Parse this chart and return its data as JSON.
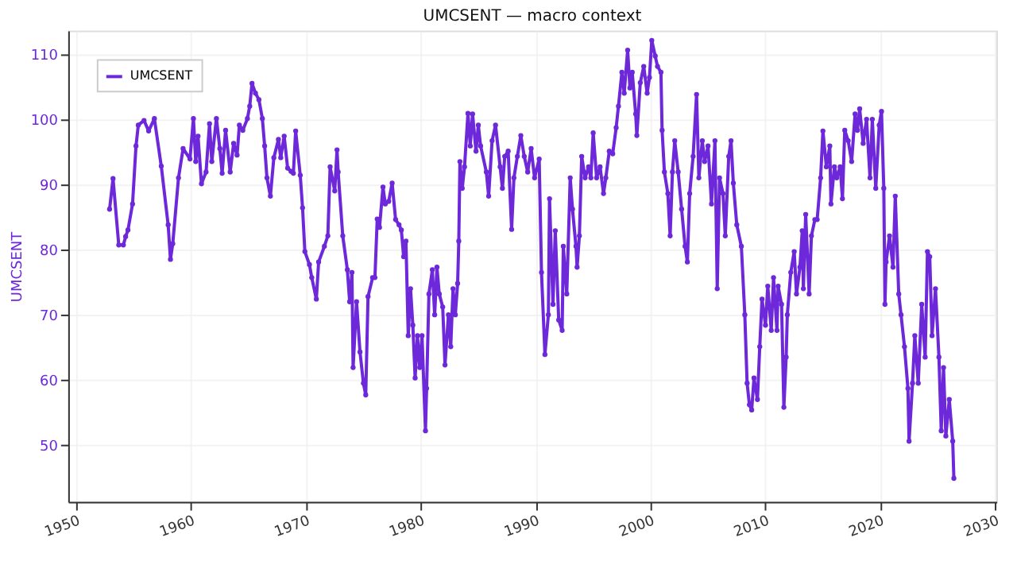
{
  "chart_data": {
    "type": "line",
    "title": "UMCSENT — macro context",
    "ylabel": "UMCSENT",
    "xlim": [
      1949.3,
      2030.1
    ],
    "xticks": [
      1950,
      1960,
      1970,
      1980,
      1990,
      2000,
      2010,
      2020,
      2030
    ],
    "ylim": [
      41.3,
      113.6
    ],
    "yticks": [
      50,
      60,
      70,
      80,
      90,
      100,
      110
    ],
    "grid": true,
    "legend": "top left",
    "marker": "circle",
    "line_style": "solid",
    "series": [
      {
        "name": "UMCSENT",
        "color": "#6d28d9",
        "x": [
          1952.9,
          1953.2,
          1953.7,
          1954.1,
          1954.3,
          1954.5,
          1954.9,
          1955.2,
          1955.4,
          1955.9,
          1956.3,
          1956.8,
          1957.4,
          1958.0,
          1958.2,
          1958.4,
          1958.9,
          1959.3,
          1959.9,
          1960.2,
          1960.4,
          1960.6,
          1960.9,
          1961.3,
          1961.6,
          1961.8,
          1962.2,
          1962.5,
          1962.7,
          1963.0,
          1963.4,
          1963.7,
          1964.0,
          1964.2,
          1964.5,
          1964.9,
          1965.1,
          1965.3,
          1965.6,
          1965.9,
          1966.2,
          1966.4,
          1966.6,
          1966.9,
          1967.2,
          1967.6,
          1967.8,
          1968.1,
          1968.4,
          1968.7,
          1968.9,
          1969.1,
          1969.5,
          1969.7,
          1969.9,
          1970.3,
          1970.5,
          1970.9,
          1971.1,
          1971.6,
          1971.9,
          1972.1,
          1972.5,
          1972.7,
          1972.8,
          1973.2,
          1973.6,
          1973.8,
          1974.0,
          1974.1,
          1974.4,
          1974.7,
          1975.0,
          1975.2,
          1975.4,
          1975.8,
          1976.0,
          1976.2,
          1976.4,
          1976.7,
          1976.9,
          1977.2,
          1977.5,
          1977.8,
          1978.1,
          1978.3,
          1978.5,
          1978.7,
          1978.9,
          1979.1,
          1979.3,
          1979.5,
          1979.7,
          1979.9,
          1980.1,
          1980.4,
          1980.5,
          1980.7,
          1981.0,
          1981.2,
          1981.4,
          1981.6,
          1981.9,
          1982.1,
          1982.4,
          1982.6,
          1982.8,
          1983.0,
          1983.2,
          1983.3,
          1983.4,
          1983.6,
          1983.8,
          1984.1,
          1984.3,
          1984.5,
          1984.8,
          1985.0,
          1985.2,
          1985.7,
          1985.9,
          1986.2,
          1986.5,
          1986.9,
          1987.1,
          1987.3,
          1987.6,
          1987.9,
          1988.1,
          1988.4,
          1988.7,
          1989.0,
          1989.3,
          1989.6,
          1989.9,
          1990.3,
          1990.5,
          1990.8,
          1991.1,
          1991.2,
          1991.5,
          1991.7,
          1992.0,
          1992.3,
          1992.4,
          1992.7,
          1993.0,
          1993.2,
          1993.5,
          1993.6,
          1993.8,
          1994.0,
          1994.3,
          1994.6,
          1994.8,
          1995.0,
          1995.3,
          1995.6,
          1995.9,
          1996.1,
          1996.4,
          1996.7,
          1997.0,
          1997.2,
          1997.5,
          1997.7,
          1998.0,
          1998.2,
          1998.4,
          1998.7,
          1998.8,
          1999.1,
          1999.4,
          1999.7,
          1999.9,
          2000.1,
          2000.4,
          2000.6,
          2000.9,
          2001.0,
          2001.2,
          2001.5,
          2001.7,
          2001.9,
          2002.1,
          2002.4,
          2002.7,
          2003.0,
          2003.2,
          2003.4,
          2003.7,
          2004.0,
          2004.2,
          2004.5,
          2004.7,
          2005.0,
          2005.3,
          2005.6,
          2005.8,
          2006.0,
          2006.3,
          2006.5,
          2006.8,
          2007.0,
          2007.2,
          2007.5,
          2007.9,
          2008.2,
          2008.4,
          2008.6,
          2008.8,
          2009.0,
          2009.3,
          2009.5,
          2009.7,
          2010.0,
          2010.2,
          2010.5,
          2010.7,
          2011.0,
          2011.1,
          2011.4,
          2011.6,
          2011.8,
          2011.9,
          2012.2,
          2012.5,
          2012.7,
          2013.0,
          2013.2,
          2013.3,
          2013.5,
          2013.8,
          2014.0,
          2014.3,
          2014.5,
          2014.8,
          2015.0,
          2015.3,
          2015.6,
          2015.7,
          2016.0,
          2016.2,
          2016.5,
          2016.7,
          2016.9,
          2017.2,
          2017.5,
          2017.8,
          2018.0,
          2018.2,
          2018.5,
          2018.8,
          2019.1,
          2019.3,
          2019.6,
          2019.9,
          2020.1,
          2020.3,
          2020.4,
          2020.5,
          2020.8,
          2021.1,
          2021.3,
          2021.6,
          2021.8,
          2022.1,
          2022.4,
          2022.5,
          2022.8,
          2023.0,
          2023.3,
          2023.6,
          2023.9,
          2024.1,
          2024.3,
          2024.5,
          2024.8,
          2025.1,
          2025.3,
          2025.5,
          2025.7,
          2026.0,
          2026.3,
          2026.4
        ],
        "values": [
          86.2,
          90.9,
          80.7,
          80.7,
          82,
          83,
          87,
          95.9,
          99.1,
          99.8,
          98.2,
          100.1,
          92.8,
          83.8,
          78.5,
          80.9,
          91,
          95.5,
          93.9,
          100.1,
          93.5,
          97.4,
          90.1,
          91.9,
          99.3,
          93.5,
          100.1,
          95.5,
          91.7,
          98.3,
          91.9,
          96.3,
          94.5,
          99.1,
          98.3,
          100.1,
          102,
          105.5,
          104,
          103,
          100.1,
          95.9,
          91,
          88.2,
          94.1,
          96.9,
          94.1,
          97.4,
          92.5,
          92,
          91.7,
          98.2,
          91.4,
          86.4,
          79.7,
          77.7,
          75.7,
          72.4,
          78.1,
          80.5,
          82.1,
          92.7,
          89,
          95.3,
          91.9,
          82.1,
          76.9,
          72,
          76.5,
          61.9,
          72,
          64.3,
          59.5,
          57.7,
          72.8,
          75.7,
          75.7,
          84.7,
          83.4,
          89.6,
          87,
          87.4,
          90.2,
          84.6,
          83.8,
          83,
          78.9,
          81.3,
          66.8,
          74,
          68.4,
          60.3,
          66.8,
          61.9,
          66.8,
          52.2,
          58.7,
          73.2,
          76.9,
          70,
          77.3,
          73.2,
          71.2,
          62.3,
          70,
          65.1,
          74,
          70,
          74.8,
          81.3,
          93.5,
          89.4,
          92.7,
          100.9,
          95.9,
          100.8,
          95.1,
          99.1,
          95.9,
          91.9,
          88.2,
          96.7,
          99.1,
          92.7,
          89.4,
          94.3,
          95.1,
          83.1,
          91,
          94.3,
          97.5,
          94.3,
          91.9,
          95.5,
          91,
          93.9,
          76.5,
          63.9,
          70,
          87.8,
          71.6,
          82.9,
          69.2,
          67.6,
          80.5,
          73.2,
          91,
          86.2,
          80.5,
          77.3,
          82.1,
          94.3,
          91,
          92.7,
          91,
          97.9,
          91,
          92.7,
          88.6,
          91,
          95.1,
          94.7,
          98.7,
          102,
          107.2,
          104,
          110.6,
          104.8,
          107.2,
          100.8,
          97.5,
          105.6,
          108.1,
          104,
          106.4,
          112.1,
          109.7,
          108.1,
          107.2,
          98.3,
          91.9,
          88.6,
          82.1,
          91.9,
          96.7,
          91.9,
          86.2,
          80.5,
          78.1,
          88.6,
          94.3,
          103.8,
          91,
          96.7,
          93.5,
          95.9,
          87,
          96.7,
          74,
          91,
          88.6,
          82.1,
          94.3,
          96.7,
          90.2,
          83.8,
          80.5,
          70,
          59.5,
          56.2,
          55.4,
          60.3,
          57,
          65.1,
          72.4,
          68.4,
          74.4,
          67.6,
          75.7,
          67.6,
          74.4,
          71.6,
          55.8,
          63.5,
          70,
          76.5,
          79.7,
          73.2,
          77.3,
          82.9,
          74,
          85.4,
          73.2,
          82.1,
          84.6,
          84.6,
          91,
          98.2,
          92.7,
          95.9,
          87,
          92.7,
          91,
          92.7,
          87.8,
          98.3,
          96.7,
          93.5,
          100.8,
          98.3,
          101.6,
          96.3,
          100,
          91,
          100,
          89.4,
          99.1,
          101.2,
          89.4,
          71.6,
          78.1,
          82.1,
          77.3,
          88.2,
          73.2,
          70,
          65.1,
          58.7,
          50.6,
          59.5,
          66.8,
          59.5,
          71.6,
          63.5,
          79.7,
          78.9,
          66.8,
          74,
          63.5,
          52.2,
          61.9,
          51.4,
          57,
          50.6,
          44.9
        ]
      }
    ]
  }
}
